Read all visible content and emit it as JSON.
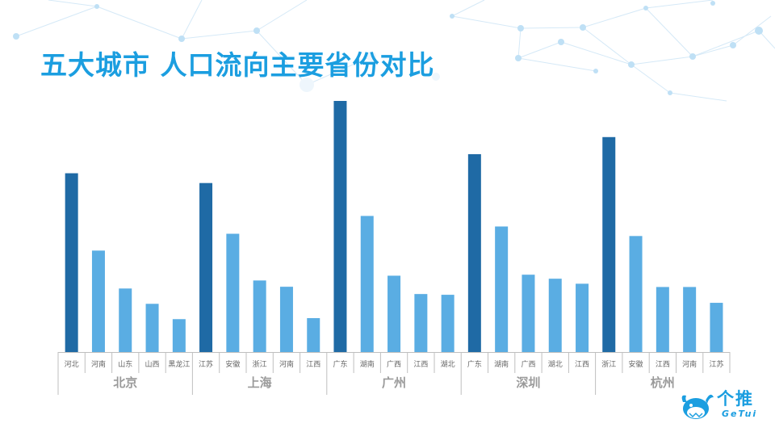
{
  "title": "五大城市 人口流向主要省份对比",
  "brand": {
    "name": "个推",
    "sub": "GeTui"
  },
  "colors": {
    "primary": "#1f6aa5",
    "secondary": "#5aade3",
    "title": "#1b9ee0",
    "axis": "#bfbfbf",
    "group_label": "#9a9a9a"
  },
  "chart_data": {
    "type": "bar",
    "title": "五大城市 人口流向主要省份对比",
    "xlabel": "",
    "ylabel": "",
    "ylim": [
      0,
      100
    ],
    "grid": false,
    "legend": "none",
    "groups": [
      {
        "name": "北京",
        "categories": [
          "河北",
          "河南",
          "山东",
          "山西",
          "黑龙江"
        ],
        "values": [
          71.2,
          40.4,
          25.3,
          19.2,
          13.1
        ]
      },
      {
        "name": "上海",
        "categories": [
          "江苏",
          "安徽",
          "浙江",
          "河南",
          "江西"
        ],
        "values": [
          67.3,
          47.1,
          28.5,
          26.0,
          13.5
        ]
      },
      {
        "name": "广州",
        "categories": [
          "广东",
          "湖南",
          "广西",
          "江西",
          "湖北"
        ],
        "values": [
          100.0,
          54.2,
          30.4,
          23.1,
          22.8
        ]
      },
      {
        "name": "深圳",
        "categories": [
          "广东",
          "湖南",
          "广西",
          "湖北",
          "江西"
        ],
        "values": [
          78.8,
          50.0,
          30.8,
          29.2,
          27.2
        ]
      },
      {
        "name": "杭州",
        "categories": [
          "浙江",
          "安徽",
          "江西",
          "河南",
          "江苏"
        ],
        "values": [
          85.6,
          46.2,
          25.9,
          25.9,
          19.6
        ]
      }
    ]
  }
}
